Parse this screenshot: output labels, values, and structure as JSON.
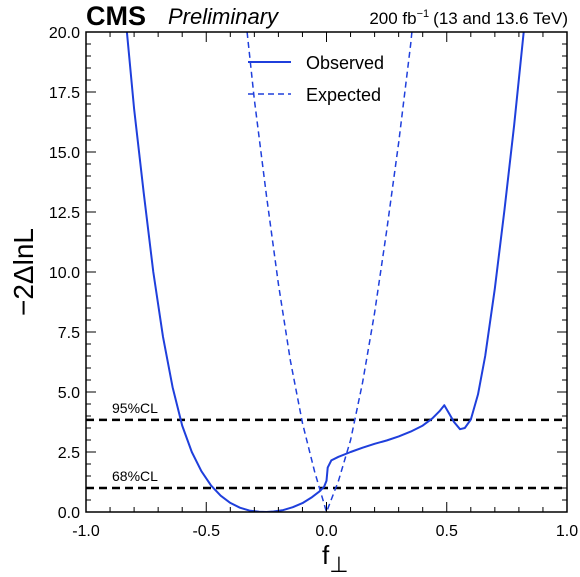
{
  "header": {
    "experiment": "CMS",
    "status": "Preliminary",
    "lumi_main": "200 fb",
    "lumi_exp": "−1",
    "lumi_energy": "(13 and 13.6 TeV)"
  },
  "chart_data": {
    "type": "line",
    "xlabel_main": "f",
    "xlabel_sub": "⊥",
    "ylabel": "−2ΔlnL",
    "xlim": [
      -1.0,
      1.0
    ],
    "ylim": [
      0.0,
      20.0
    ],
    "x_ticks": [
      "-1.0",
      "-0.5",
      "0.0",
      "0.5",
      "1.0"
    ],
    "y_ticks": [
      "0.0",
      "2.5",
      "5.0",
      "7.5",
      "10.0",
      "12.5",
      "15.0",
      "17.5",
      "20.0"
    ],
    "grid": false,
    "legend_position": "top-center",
    "color": "#1f3fdc",
    "series": [
      {
        "name": "Observed",
        "style": "solid",
        "points": [
          [
            -0.83,
            20.0
          ],
          [
            -0.8,
            16.8
          ],
          [
            -0.76,
            13.3
          ],
          [
            -0.72,
            10.0
          ],
          [
            -0.68,
            7.3
          ],
          [
            -0.64,
            5.2
          ],
          [
            -0.6,
            3.6
          ],
          [
            -0.56,
            2.5
          ],
          [
            -0.52,
            1.7
          ],
          [
            -0.48,
            1.1
          ],
          [
            -0.44,
            0.68
          ],
          [
            -0.4,
            0.38
          ],
          [
            -0.36,
            0.18
          ],
          [
            -0.32,
            0.06
          ],
          [
            -0.28,
            0.01
          ],
          [
            -0.25,
            0.0
          ],
          [
            -0.22,
            0.02
          ],
          [
            -0.18,
            0.08
          ],
          [
            -0.14,
            0.2
          ],
          [
            -0.1,
            0.37
          ],
          [
            -0.06,
            0.62
          ],
          [
            -0.03,
            0.85
          ],
          [
            -0.01,
            1.05
          ],
          [
            0.0,
            1.3
          ],
          [
            0.005,
            1.85
          ],
          [
            0.02,
            2.15
          ],
          [
            0.05,
            2.3
          ],
          [
            0.1,
            2.5
          ],
          [
            0.15,
            2.68
          ],
          [
            0.2,
            2.84
          ],
          [
            0.25,
            2.98
          ],
          [
            0.3,
            3.15
          ],
          [
            0.35,
            3.35
          ],
          [
            0.4,
            3.6
          ],
          [
            0.44,
            3.9
          ],
          [
            0.47,
            4.2
          ],
          [
            0.49,
            4.45
          ],
          [
            0.51,
            4.1
          ],
          [
            0.53,
            3.75
          ],
          [
            0.555,
            3.45
          ],
          [
            0.575,
            3.5
          ],
          [
            0.6,
            3.85
          ],
          [
            0.63,
            4.9
          ],
          [
            0.66,
            6.5
          ],
          [
            0.7,
            9.3
          ],
          [
            0.74,
            12.6
          ],
          [
            0.78,
            16.1
          ],
          [
            0.82,
            20.0
          ]
        ]
      },
      {
        "name": "Expected",
        "style": "dashed",
        "points": [
          [
            -0.33,
            20.0
          ],
          [
            -0.3,
            17.2
          ],
          [
            -0.25,
            13.2
          ],
          [
            -0.2,
            9.5
          ],
          [
            -0.15,
            6.3
          ],
          [
            -0.1,
            3.7
          ],
          [
            -0.05,
            1.7
          ],
          [
            0.0,
            0.0
          ],
          [
            0.05,
            1.3
          ],
          [
            0.1,
            3.0
          ],
          [
            0.15,
            5.4
          ],
          [
            0.2,
            8.3
          ],
          [
            0.25,
            11.7
          ],
          [
            0.3,
            15.4
          ],
          [
            0.35,
            19.5
          ],
          [
            0.355,
            20.0
          ]
        ]
      }
    ],
    "reference_lines": [
      {
        "label": "95%CL",
        "y": 3.84
      },
      {
        "label": "68%CL",
        "y": 1.0
      }
    ]
  }
}
